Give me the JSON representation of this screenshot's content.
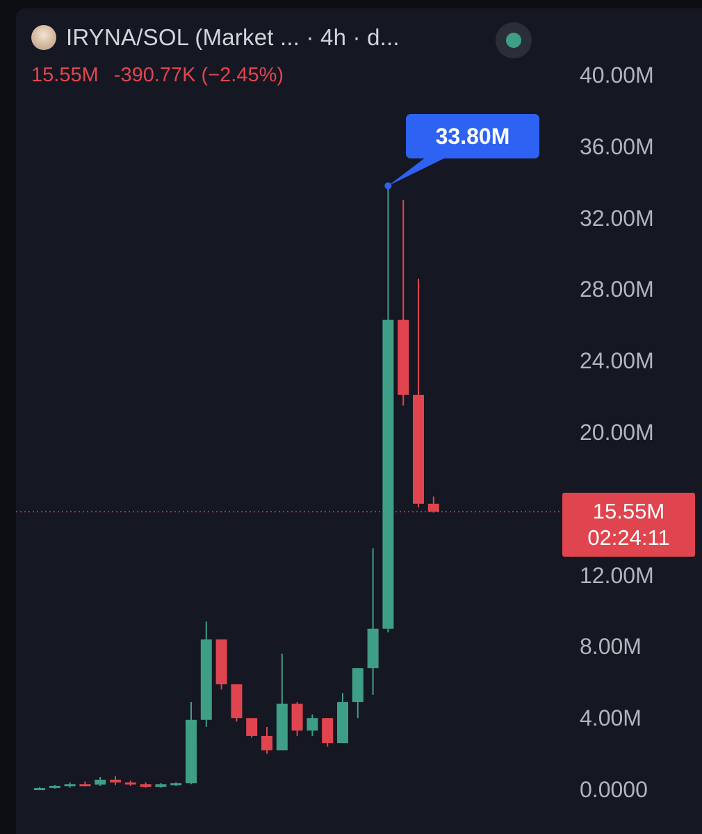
{
  "header": {
    "pair_label": "IRYNA/SOL (Market ...   · 4h · d...",
    "last_value": "15.55M",
    "change": "-390.77K (−2.45%)"
  },
  "price_tag": {
    "value": "15.55M",
    "countdown": "02:24:11"
  },
  "high_marker": {
    "label": "33.80M",
    "value": 33.8
  },
  "colors": {
    "background": "#151722",
    "up": "#3f9e86",
    "down": "#e0454f",
    "axis_text": "#b2b5be",
    "highlight": "#2e62f2"
  },
  "chart_data": {
    "type": "candlestick",
    "unit": "M",
    "y_tick_labels": [
      "40.00M",
      "36.00M",
      "32.00M",
      "28.00M",
      "24.00M",
      "20.00M",
      "12.00M",
      "8.00M",
      "4.00M",
      "0.0000"
    ],
    "y_ticks": [
      40,
      36,
      32,
      28,
      24,
      20,
      12,
      8,
      4,
      0
    ],
    "ylim": [
      0,
      40
    ],
    "current_price": 15.55,
    "candles": [
      {
        "o": 0.05,
        "h": 0.12,
        "l": 0.02,
        "c": 0.08
      },
      {
        "o": 0.08,
        "h": 0.25,
        "l": 0.05,
        "c": 0.2
      },
      {
        "o": 0.2,
        "h": 0.4,
        "l": 0.1,
        "c": 0.3
      },
      {
        "o": 0.3,
        "h": 0.45,
        "l": 0.18,
        "c": 0.28
      },
      {
        "o": 0.28,
        "h": 0.7,
        "l": 0.2,
        "c": 0.55
      },
      {
        "o": 0.55,
        "h": 0.75,
        "l": 0.25,
        "c": 0.4
      },
      {
        "o": 0.4,
        "h": 0.5,
        "l": 0.2,
        "c": 0.3
      },
      {
        "o": 0.3,
        "h": 0.4,
        "l": 0.1,
        "c": 0.15
      },
      {
        "o": 0.15,
        "h": 0.35,
        "l": 0.1,
        "c": 0.3
      },
      {
        "o": 0.3,
        "h": 0.4,
        "l": 0.2,
        "c": 0.35
      },
      {
        "o": 0.35,
        "h": 4.9,
        "l": 0.3,
        "c": 3.9
      },
      {
        "o": 3.9,
        "h": 9.4,
        "l": 3.5,
        "c": 8.4
      },
      {
        "o": 8.4,
        "h": 8.4,
        "l": 5.6,
        "c": 5.9
      },
      {
        "o": 5.9,
        "h": 5.9,
        "l": 3.8,
        "c": 4.0
      },
      {
        "o": 4.0,
        "h": 4.0,
        "l": 2.9,
        "c": 3.0
      },
      {
        "o": 3.0,
        "h": 3.5,
        "l": 2.0,
        "c": 2.2
      },
      {
        "o": 2.2,
        "h": 7.6,
        "l": 2.2,
        "c": 4.8
      },
      {
        "o": 4.8,
        "h": 4.9,
        "l": 3.0,
        "c": 3.3
      },
      {
        "o": 3.3,
        "h": 4.2,
        "l": 3.0,
        "c": 4.0
      },
      {
        "o": 4.0,
        "h": 4.0,
        "l": 2.4,
        "c": 2.6
      },
      {
        "o": 2.6,
        "h": 5.4,
        "l": 2.6,
        "c": 4.9
      },
      {
        "o": 4.9,
        "h": 6.8,
        "l": 4.0,
        "c": 6.8
      },
      {
        "o": 6.8,
        "h": 13.5,
        "l": 5.3,
        "c": 9.0
      },
      {
        "o": 9.0,
        "h": 33.8,
        "l": 8.8,
        "c": 26.3
      },
      {
        "o": 26.3,
        "h": 33.0,
        "l": 21.5,
        "c": 22.1
      },
      {
        "o": 22.1,
        "h": 28.6,
        "l": 15.8,
        "c": 16.0
      },
      {
        "o": 16.0,
        "h": 16.4,
        "l": 15.5,
        "c": 15.55
      }
    ]
  }
}
